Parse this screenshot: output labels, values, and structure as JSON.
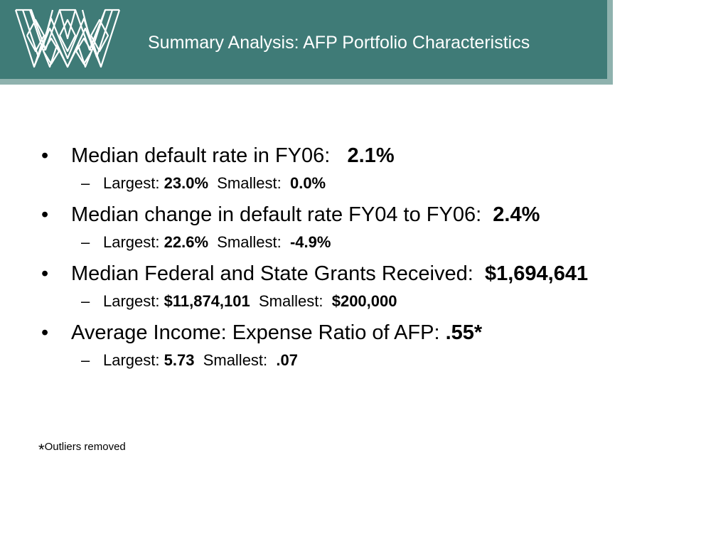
{
  "header": {
    "title": "Summary Analysis: AFP Portfolio Characteristics",
    "logo_icon": "woven-w-logo-icon",
    "band_color": "#3f7b77",
    "band_shadow_color": "#8fb2ae"
  },
  "bullet_glyph": "•",
  "sub_glyph": "–",
  "bullets": [
    {
      "label": "Median default rate in FY06:",
      "value": "2.1%",
      "sub": {
        "largest_label": "Largest:",
        "largest_value": "23.0%",
        "smallest_label": "Smallest:",
        "smallest_value": "0.0%"
      }
    },
    {
      "label": "Median change in default rate FY04 to FY06:",
      "value": "2.4%",
      "sub": {
        "largest_label": "Largest:",
        "largest_value": "22.6%",
        "smallest_label": "Smallest:",
        "smallest_value": "-4.9%"
      }
    },
    {
      "label": "Median Federal and State Grants Received:",
      "value": "$1,694,641",
      "sub": {
        "largest_label": "Largest:",
        "largest_value": "$11,874,101",
        "smallest_label": "Smallest:",
        "smallest_value": "$200,000"
      }
    },
    {
      "label": "Average Income: Expense Ratio of AFP:",
      "value": ".55*",
      "sub": {
        "largest_label": "Largest:",
        "largest_value": "5.73",
        "smallest_label": "Smallest:",
        "smallest_value": ".07"
      }
    }
  ],
  "footnote": {
    "star": "*",
    "text": "Outliers removed"
  }
}
